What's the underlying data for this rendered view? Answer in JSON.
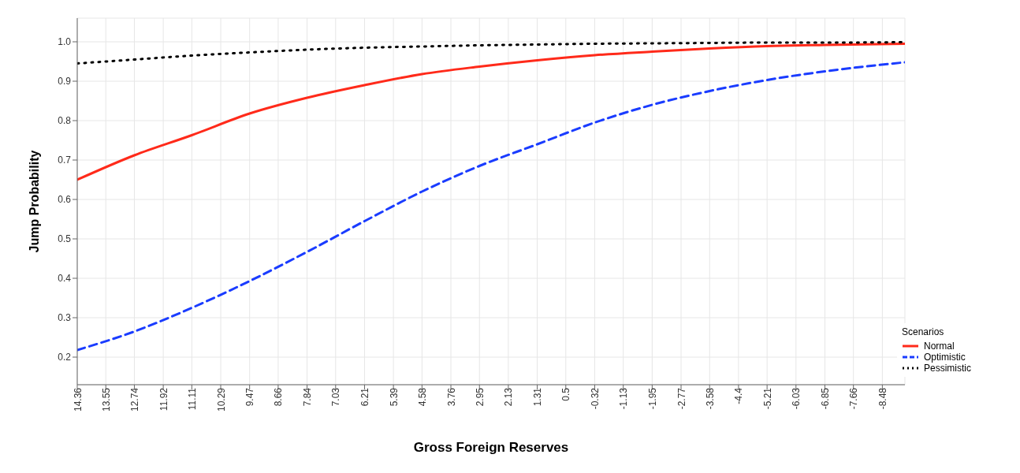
{
  "chart_data": {
    "type": "line",
    "xlabel": "Gross Foreign Reserves",
    "ylabel": "Jump Probability",
    "legend_title": "Scenarios",
    "x": [
      14.36,
      12.74,
      11.11,
      9.47,
      7.84,
      6.21,
      4.58,
      2.95,
      1.31,
      -0.32,
      -1.95,
      -3.58,
      -5.21,
      -6.85,
      -9.12
    ],
    "series": [
      {
        "name": "Normal",
        "color": "#ff2a1a",
        "line_style": "solid",
        "values": [
          0.65,
          0.712,
          0.763,
          0.818,
          0.858,
          0.89,
          0.918,
          0.937,
          0.953,
          0.966,
          0.975,
          0.983,
          0.989,
          0.992,
          0.995
        ]
      },
      {
        "name": "Optimistic",
        "color": "#1a3cff",
        "line_style": "dashed",
        "values": [
          0.218,
          0.265,
          0.325,
          0.393,
          0.467,
          0.545,
          0.62,
          0.685,
          0.74,
          0.795,
          0.84,
          0.875,
          0.903,
          0.925,
          0.948
        ]
      },
      {
        "name": "Pessimistic",
        "color": "#000000",
        "line_style": "dotted",
        "values": [
          0.945,
          0.955,
          0.965,
          0.973,
          0.98,
          0.985,
          0.988,
          0.991,
          0.993,
          0.995,
          0.996,
          0.997,
          0.998,
          0.998,
          0.999
        ]
      }
    ],
    "xlim": [
      14.36,
      -9.12
    ],
    "xticks": [
      14.36,
      13.55,
      12.74,
      11.92,
      11.11,
      10.29,
      9.47,
      8.66,
      7.84,
      7.03,
      6.21,
      5.39,
      4.58,
      3.76,
      2.95,
      2.13,
      1.31,
      0.5,
      -0.32,
      -1.13,
      -1.95,
      -2.77,
      -3.58,
      -4.4,
      -5.21,
      -6.03,
      -6.85,
      -7.66,
      -8.48
    ],
    "ylim": [
      0.13,
      1.06
    ],
    "yticks": [
      0.2,
      0.3,
      0.4,
      0.5,
      0.6,
      0.7,
      0.8,
      0.9,
      {
        "value": 1,
        "label": "1.0"
      }
    ],
    "grid": true,
    "legend": "bottom right",
    "marker": "none"
  }
}
